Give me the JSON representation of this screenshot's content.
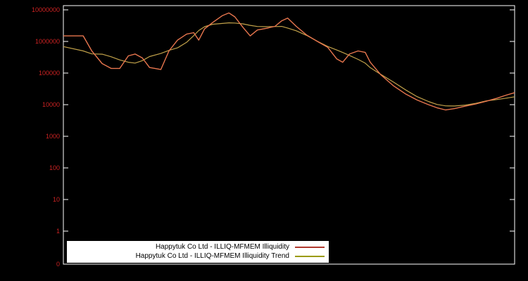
{
  "chart_data": {
    "type": "line",
    "title": "",
    "xlabel": "",
    "ylabel": "",
    "yscale": "log",
    "grid": false,
    "background_color": "#000000",
    "axis_color": "#ffffff",
    "tick_label_color": "#cc2222",
    "curve_color": "#e8764e",
    "ylim_labels": [
      "0",
      "10000000"
    ],
    "y_ticks": [
      {
        "label": "10000000",
        "value": 10000000
      },
      {
        "label": "1000000",
        "value": 1000000
      },
      {
        "label": "100000",
        "value": 100000
      },
      {
        "label": "10000",
        "value": 10000
      },
      {
        "label": "1000",
        "value": 1000
      },
      {
        "label": "100",
        "value": 100
      },
      {
        "label": "10",
        "value": 10
      },
      {
        "label": "1",
        "value": 1
      },
      {
        "label": "0",
        "value": 0
      }
    ],
    "x_ticks": [],
    "legend_position": "bottom-left",
    "legend_background": "#ffffff",
    "series": [
      {
        "name": "Happytuk Co Ltd - ILLIQ-MFMEM Illiquidity",
        "legend_color": "#b03a2e",
        "line_color": "#e8764e",
        "smoothing": 0
      },
      {
        "name": "Happytuk Co Ltd - ILLIQ-MFMEM Illiquidity Trend",
        "legend_color": "#9a9a00",
        "line_color": "#c2a24a",
        "smoothing": 3
      }
    ],
    "points": [
      [
        0.0,
        1500000
      ],
      [
        0.044,
        1500000
      ],
      [
        0.063,
        500000
      ],
      [
        0.086,
        200000
      ],
      [
        0.106,
        140000
      ],
      [
        0.125,
        140000
      ],
      [
        0.144,
        350000
      ],
      [
        0.159,
        400000
      ],
      [
        0.175,
        300000
      ],
      [
        0.191,
        150000
      ],
      [
        0.216,
        130000
      ],
      [
        0.234,
        500000
      ],
      [
        0.253,
        1100000
      ],
      [
        0.273,
        1700000
      ],
      [
        0.289,
        1900000
      ],
      [
        0.3,
        1100000
      ],
      [
        0.313,
        2500000
      ],
      [
        0.331,
        4000000
      ],
      [
        0.352,
        6500000
      ],
      [
        0.367,
        8000000
      ],
      [
        0.38,
        6000000
      ],
      [
        0.398,
        2800000
      ],
      [
        0.414,
        1500000
      ],
      [
        0.43,
        2300000
      ],
      [
        0.45,
        2600000
      ],
      [
        0.469,
        3000000
      ],
      [
        0.484,
        4500000
      ],
      [
        0.497,
        5500000
      ],
      [
        0.516,
        3000000
      ],
      [
        0.539,
        1600000
      ],
      [
        0.563,
        1000000
      ],
      [
        0.586,
        650000
      ],
      [
        0.606,
        280000
      ],
      [
        0.619,
        220000
      ],
      [
        0.634,
        400000
      ],
      [
        0.653,
        500000
      ],
      [
        0.669,
        450000
      ],
      [
        0.68,
        220000
      ],
      [
        0.703,
        90000
      ],
      [
        0.731,
        40000
      ],
      [
        0.758,
        22000
      ],
      [
        0.784,
        14000
      ],
      [
        0.809,
        10000
      ],
      [
        0.828,
        8000
      ],
      [
        0.847,
        6800
      ],
      [
        0.867,
        7500
      ],
      [
        0.891,
        9000
      ],
      [
        0.914,
        10500
      ],
      [
        0.938,
        13000
      ],
      [
        0.961,
        16000
      ],
      [
        0.981,
        20000
      ],
      [
        1.0,
        24000
      ]
    ]
  }
}
